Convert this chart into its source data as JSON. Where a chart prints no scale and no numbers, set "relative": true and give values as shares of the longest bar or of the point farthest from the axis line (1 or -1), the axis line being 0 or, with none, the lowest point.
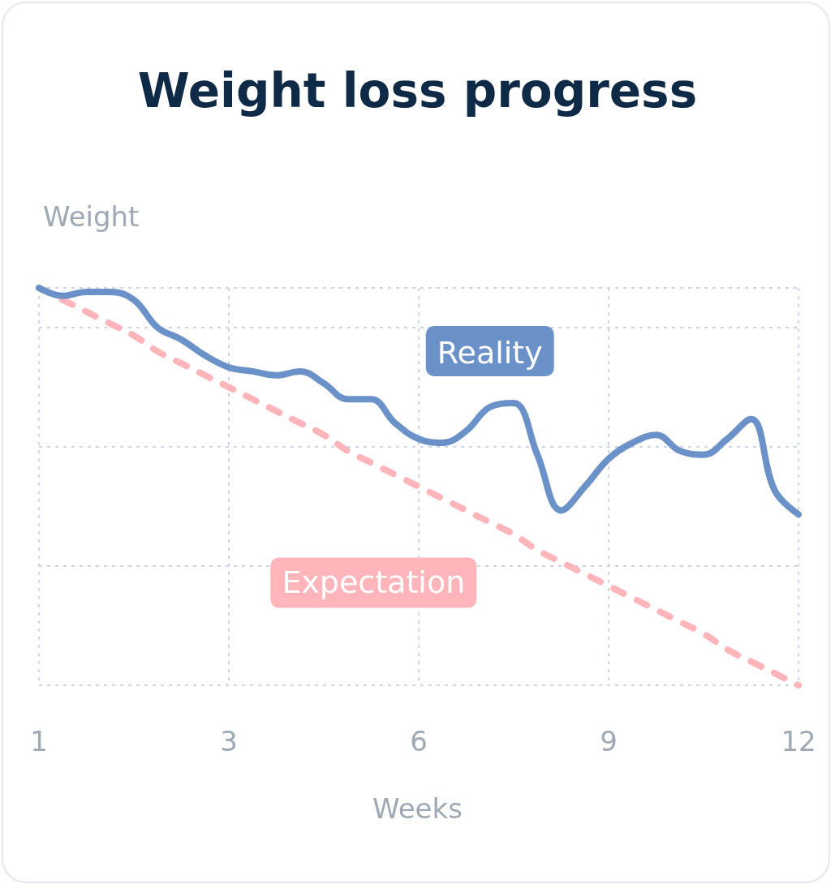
{
  "chart_data": {
    "type": "line",
    "title": "Weight loss progress",
    "xlabel": "Weeks",
    "ylabel": "Weight",
    "relative": true,
    "grid": true,
    "legend": false,
    "categories": [
      "1",
      null,
      null,
      null,
      null,
      null,
      null,
      null,
      "3",
      null,
      null,
      null,
      null,
      null,
      null,
      null,
      "6",
      null,
      null,
      null,
      null,
      null,
      null,
      null,
      "9",
      null,
      null,
      null,
      null,
      null,
      null,
      null,
      "12"
    ],
    "series": [
      {
        "name": "Reality",
        "color": "#6b91c9",
        "line_style": "solid",
        "values": [
          1.0,
          0.98,
          0.99,
          0.99,
          0.97,
          0.9,
          0.87,
          0.83,
          0.8,
          0.79,
          0.78,
          0.79,
          0.76,
          0.72,
          0.72,
          0.66,
          0.62,
          0.61,
          0.64,
          0.7,
          0.71,
          0.58,
          0.44,
          0.5,
          0.57,
          0.61,
          0.63,
          0.59,
          0.58,
          0.62,
          0.67,
          0.49,
          0.43
        ]
      },
      {
        "name": "Expectation",
        "color": "#ffb5b9",
        "line_style": "dashed",
        "values": [
          1.0,
          0.97,
          0.94,
          0.91,
          0.88,
          0.84,
          0.81,
          0.78,
          0.75,
          0.72,
          0.69,
          0.66,
          0.63,
          0.59,
          0.56,
          0.53,
          0.5,
          0.47,
          0.44,
          0.41,
          0.38,
          0.34,
          0.31,
          0.28,
          0.25,
          0.22,
          0.19,
          0.16,
          0.13,
          0.09,
          0.06,
          0.03,
          0.0
        ]
      }
    ]
  }
}
